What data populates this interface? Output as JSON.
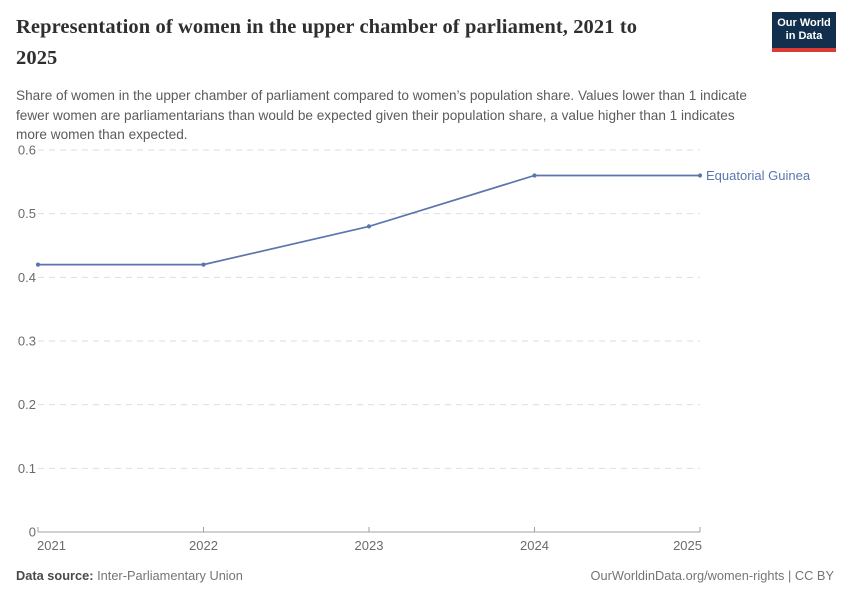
{
  "header": {
    "title_lines": [
      "Representation of women in the upper chamber of parliament, 2021 to",
      "2025"
    ],
    "subtitle_lines": [
      "Share of women in the upper chamber of parliament compared to women’s population share. Values lower than 1 indicate",
      "fewer women are parliamentarians than would be expected given their population share, a value higher than 1 indicates",
      "more women than expected."
    ],
    "logo": {
      "line1": "Our World",
      "line2": "in Data",
      "bg_color": "#12304e",
      "accent_color": "#dc3a32"
    }
  },
  "chart_data": {
    "type": "line",
    "title": "Representation of women in the upper chamber of parliament, 2021 to 2025",
    "x": [
      2021,
      2022,
      2023,
      2024,
      2025
    ],
    "series": [
      {
        "name": "Equatorial Guinea",
        "values": [
          0.42,
          0.42,
          0.48,
          0.56,
          0.56
        ],
        "color": "#5b76ad"
      }
    ],
    "ylim": [
      0,
      0.6
    ],
    "yticks": [
      0,
      0.1,
      0.2,
      0.3,
      0.4,
      0.5,
      0.6
    ],
    "xlabel": "",
    "ylabel": "",
    "grid": "horizontal-dashed",
    "legend_position": "end-of-line-label",
    "colors": {
      "grid": "#dedede",
      "axis": "#a1a1a1",
      "tick_label": "#6b6b6b"
    }
  },
  "footer": {
    "source_label": "Data source:",
    "source_value": " Inter-Parliamentary Union",
    "right_link": "OurWorldinData.org/women-rights | CC BY"
  }
}
